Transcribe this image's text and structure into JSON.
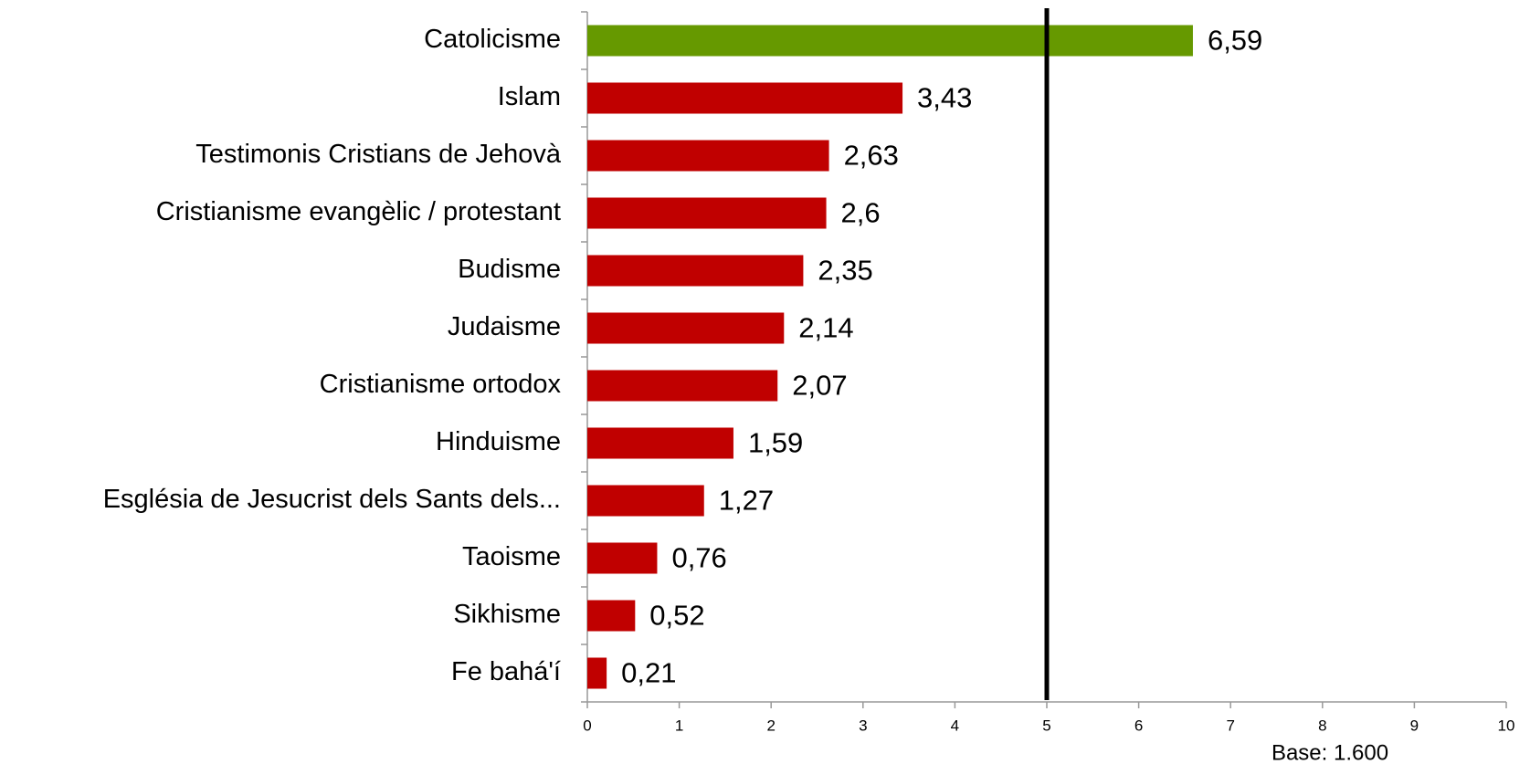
{
  "chart_data": {
    "type": "barh",
    "categories": [
      "Catolicisme",
      "Islam",
      "Testimonis Cristians de Jehovà",
      "Cristianisme evangèlic / protestant",
      "Budisme",
      "Judaisme",
      "Cristianisme ortodox",
      "Hinduisme",
      "Església de Jesucrist dels Sants dels...",
      "Taoisme",
      "Sikhisme",
      "Fe bahá'í"
    ],
    "values": [
      6.59,
      3.43,
      2.63,
      2.6,
      2.35,
      2.14,
      2.07,
      1.59,
      1.27,
      0.76,
      0.52,
      0.21
    ],
    "value_labels": [
      "6,59",
      "3,43",
      "2,63",
      "2,6",
      "2,35",
      "2,14",
      "2,07",
      "1,59",
      "1,27",
      "0,76",
      "0,52",
      "0,21"
    ],
    "colors": [
      "#669900",
      "#c00000",
      "#c00000",
      "#c00000",
      "#c00000",
      "#c00000",
      "#c00000",
      "#c00000",
      "#c00000",
      "#c00000",
      "#c00000",
      "#c00000"
    ],
    "xlim": [
      0,
      10
    ],
    "xticks": [
      0,
      1,
      2,
      3,
      4,
      5,
      6,
      7,
      8,
      9,
      10
    ],
    "reference_line": 5,
    "annotation": "Base: 1.600"
  }
}
